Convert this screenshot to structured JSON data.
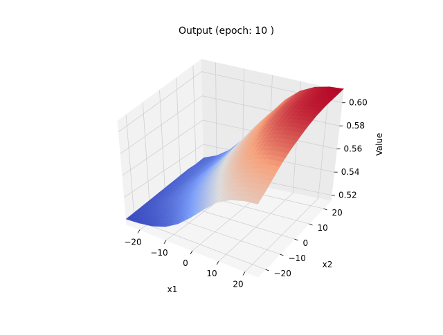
{
  "chart_data": {
    "type": "surface3d",
    "title": "Output (epoch: 10 )",
    "xlabel": "x1",
    "ylabel": "x2",
    "zlabel": "Value",
    "xlim": [
      -25,
      25
    ],
    "ylim": [
      -25,
      25
    ],
    "zlim": [
      0.515,
      0.61
    ],
    "xticks": [
      -20,
      -10,
      0,
      10,
      20
    ],
    "xtick_labels": [
      "−20",
      "−10",
      "0",
      "10",
      "20"
    ],
    "yticks": [
      -20,
      -10,
      0,
      10,
      20
    ],
    "ytick_labels": [
      "−20",
      "−10",
      "0",
      "10",
      "20"
    ],
    "zticks": [
      0.52,
      0.54,
      0.56,
      0.58,
      0.6
    ],
    "ztick_labels": [
      "0.52",
      "0.54",
      "0.56",
      "0.58",
      "0.60"
    ],
    "colormap": "coolwarm",
    "grid": true,
    "surface": {
      "x": [
        -25,
        -20,
        -15,
        -10,
        -5,
        0,
        5,
        10,
        15,
        20,
        25
      ],
      "y": [
        -25,
        -20,
        -15,
        -10,
        -5,
        0,
        5,
        10,
        15,
        20,
        25
      ],
      "z": [
        [
          0.52,
          0.521,
          0.523,
          0.527,
          0.534,
          0.544,
          0.555,
          0.565,
          0.571,
          0.574,
          0.575
        ],
        [
          0.521,
          0.523,
          0.526,
          0.531,
          0.539,
          0.549,
          0.56,
          0.57,
          0.576,
          0.579,
          0.58
        ],
        [
          0.522,
          0.525,
          0.529,
          0.535,
          0.544,
          0.555,
          0.566,
          0.576,
          0.582,
          0.585,
          0.586
        ],
        [
          0.523,
          0.527,
          0.532,
          0.539,
          0.549,
          0.56,
          0.572,
          0.582,
          0.588,
          0.591,
          0.592
        ],
        [
          0.524,
          0.528,
          0.534,
          0.542,
          0.553,
          0.565,
          0.577,
          0.587,
          0.593,
          0.596,
          0.597
        ],
        [
          0.525,
          0.529,
          0.536,
          0.545,
          0.556,
          0.569,
          0.581,
          0.591,
          0.597,
          0.6,
          0.601
        ],
        [
          0.526,
          0.53,
          0.537,
          0.547,
          0.559,
          0.572,
          0.585,
          0.595,
          0.601,
          0.604,
          0.605
        ],
        [
          0.527,
          0.531,
          0.538,
          0.548,
          0.561,
          0.575,
          0.588,
          0.598,
          0.604,
          0.607,
          0.608
        ],
        [
          0.528,
          0.532,
          0.539,
          0.549,
          0.562,
          0.577,
          0.59,
          0.6,
          0.606,
          0.609,
          0.61
        ],
        [
          0.528,
          0.532,
          0.54,
          0.55,
          0.563,
          0.578,
          0.591,
          0.601,
          0.607,
          0.61,
          0.611
        ],
        [
          0.529,
          0.533,
          0.54,
          0.551,
          0.564,
          0.578,
          0.592,
          0.602,
          0.608,
          0.611,
          0.612
        ]
      ]
    }
  }
}
